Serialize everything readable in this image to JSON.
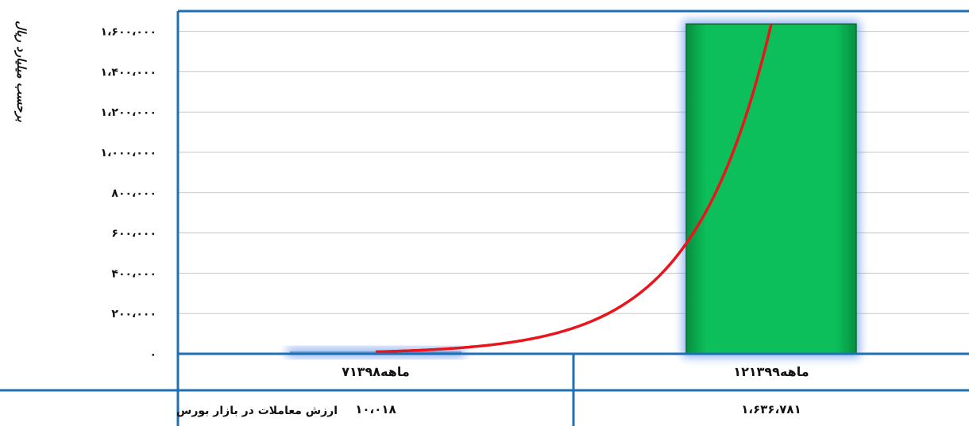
{
  "chart_data": {
    "type": "bar",
    "ylabel": "برحسب میلیارد ریال",
    "ylim": [
      0,
      1700000
    ],
    "yticks": [
      {
        "value": 0,
        "label": "۰"
      },
      {
        "value": 200000,
        "label": "۲۰۰،۰۰۰"
      },
      {
        "value": 400000,
        "label": "۴۰۰،۰۰۰"
      },
      {
        "value": 600000,
        "label": "۶۰۰،۰۰۰"
      },
      {
        "value": 800000,
        "label": "۸۰۰،۰۰۰"
      },
      {
        "value": 1000000,
        "label": "۱،۰۰۰،۰۰۰"
      },
      {
        "value": 1200000,
        "label": "۱،۲۰۰،۰۰۰"
      },
      {
        "value": 1400000,
        "label": "۱،۴۰۰،۰۰۰"
      },
      {
        "value": 1600000,
        "label": "۱،۶۰۰،۰۰۰"
      }
    ],
    "categories": [
      "۷ماهه۱۳۹۸",
      "۱۲ماهه۱۳۹۹"
    ],
    "series": [
      {
        "name": "ارزش معاملات در بازار بورس",
        "values": [
          10018,
          1636781
        ],
        "labels": [
          "۱۰،۰۱۸",
          "۱،۶۳۶،۷۸۱"
        ]
      }
    ],
    "trendline": {
      "type": "exponential",
      "color": "#e8151c"
    },
    "grid": true,
    "bar_colors": [
      "#6b9be0",
      "#0dbf5a"
    ]
  }
}
